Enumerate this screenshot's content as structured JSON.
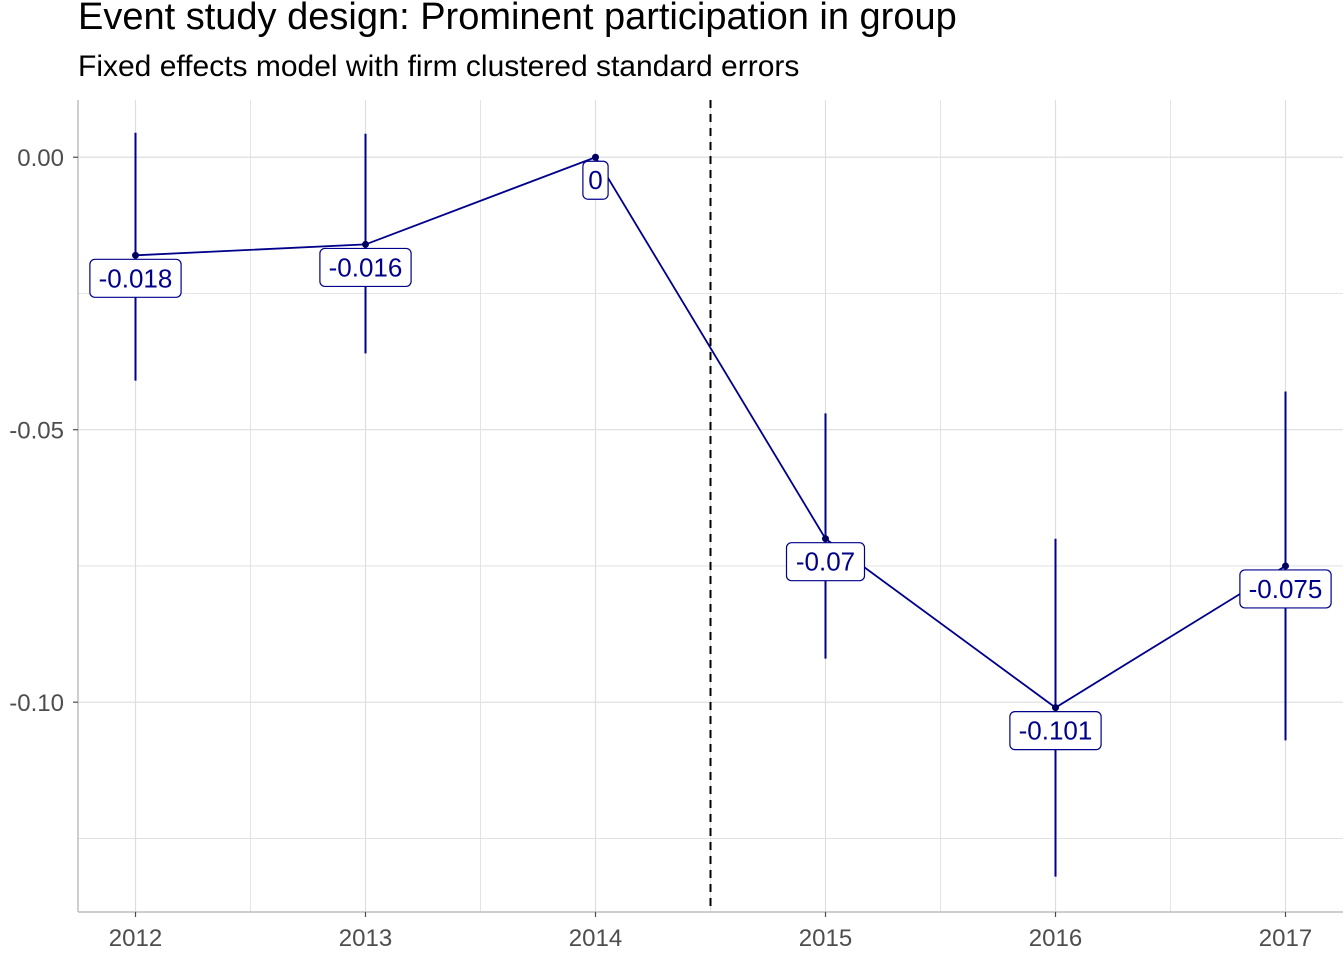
{
  "chart_data": {
    "type": "line",
    "title": "Event study design: Prominent participation in group",
    "subtitle": "Fixed effects model with firm clustered standard errors",
    "xlabel": "",
    "ylabel": "",
    "x": [
      2012,
      2013,
      2014,
      2015,
      2016,
      2017
    ],
    "x_tick_labels": [
      "2012",
      "2013",
      "2014",
      "2015",
      "2016",
      "2017"
    ],
    "estimates": [
      -0.018,
      -0.016,
      0.0,
      -0.07,
      -0.101,
      -0.075
    ],
    "ci_lower": [
      -0.041,
      -0.036,
      0.0,
      -0.092,
      -0.132,
      -0.107
    ],
    "ci_upper": [
      0.0045,
      0.0043,
      0.0,
      -0.047,
      -0.07,
      -0.043
    ],
    "point_labels": [
      "-0.018",
      "-0.016",
      "0",
      "-0.07",
      "-0.101",
      "-0.075"
    ],
    "y_ticks": [
      0.0,
      -0.05,
      -0.1
    ],
    "y_tick_labels": [
      "0.00",
      "-0.05",
      "-0.10"
    ],
    "ylim": [
      -0.1385,
      0.0105
    ],
    "xlim": [
      2011.75,
      2017.25
    ],
    "reference_line_x": 2014.5,
    "grid": true,
    "legend": "none",
    "colors": {
      "series": "#00008b",
      "reference_line": "#000000",
      "grid": "#dedede",
      "axis": "#4d4d4d"
    }
  }
}
